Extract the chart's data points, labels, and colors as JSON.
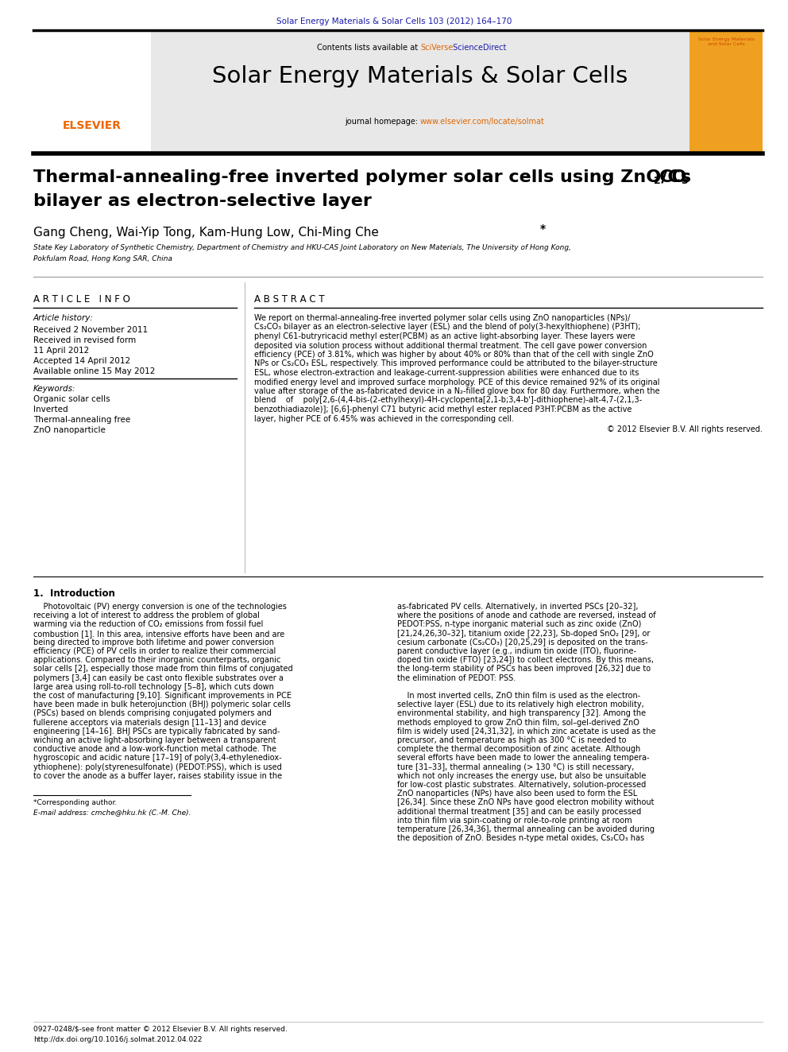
{
  "journal_header": "Solar Energy Materials & Solar Cells 103 (2012) 164–170",
  "contents_line_black": "Contents lists available at ",
  "contents_line_orange": "SciVerse",
  "contents_line_blue": " ScienceDirect",
  "journal_name": "Solar Energy Materials & Solar Cells",
  "homepage_black": "journal homepage: ",
  "homepage_orange": "www.elsevier.com/locate/solmat",
  "title_main": "Thermal-annealing-free inverted polymer solar cells using ZnO/Cs",
  "title_sub2": "2",
  "title_co": "CO",
  "title_sub3": "3",
  "title_line2": "bilayer as electron-selective layer",
  "authors_pre": "Gang Cheng, Wai-Yip Tong, Kam-Hung Low, Chi-Ming Che",
  "authors_star": "*",
  "affil1": "State Key Laboratory of Synthetic Chemistry, Department of Chemistry and HKU-CAS Joint Laboratory on New Materials, The University of Hong Kong,",
  "affil2": "Pokfulam Road, Hong Kong SAR, China",
  "art_info_hdr": "A R T I C L E   I N F O",
  "abstract_hdr": "A B S T R A C T",
  "art_history_lbl": "Article history:",
  "art_dates": [
    "Received 2 November 2011",
    "Received in revised form",
    "11 April 2012",
    "Accepted 14 April 2012",
    "Available online 15 May 2012"
  ],
  "keywords_lbl": "Keywords:",
  "keywords": [
    "Organic solar cells",
    "Inverted",
    "Thermal-annealing free",
    "ZnO nanoparticle"
  ],
  "abstract_lines": [
    "We report on thermal-annealing-free inverted polymer solar cells using ZnO nanoparticles (NPs)/",
    "Cs₂CO₃ bilayer as an electron-selective layer (ESL) and the blend of poly(3-hexylthiophene) (P3HT);",
    "phenyl C61-butryricacid methyl ester(PCBM) as an active light-absorbing layer. These layers were",
    "deposited via solution process without additional thermal treatment. The cell gave power conversion",
    "efficiency (PCE) of 3.81%, which was higher by about 40% or 80% than that of the cell with single ZnO",
    "NPs or Cs₂CO₃ ESL, respectively. This improved performance could be attributed to the bilayer-structure",
    "ESL, whose electron-extraction and leakage-current-suppression abilities were enhanced due to its",
    "modified energy level and improved surface morphology. PCE of this device remained 92% of its original",
    "value after storage of the as-fabricated device in a N₂-filled glove box for 80 day. Furthermore, when the",
    "blend    of    poly[2,6-(4,4-bis-(2-ethylhexyl)-4H-cyclopenta[2,1-b;3,4-b']-dithiophene)-alt-4,7-(2,1,3-",
    "benzothiadiazole)]; [6,6]-phenyl C71 butyric acid methyl ester replaced P3HT:PCBM as the active",
    "layer, higher PCE of 6.45% was achieved in the corresponding cell."
  ],
  "copyright": "© 2012 Elsevier B.V. All rights reserved.",
  "intro_hdr": "1.  Introduction",
  "left_intro": [
    "    Photovoltaic (PV) energy conversion is one of the technologies",
    "receiving a lot of interest to address the problem of global",
    "warming via the reduction of CO₂ emissions from fossil fuel",
    "combustion [1]. In this area, intensive efforts have been and are",
    "being directed to improve both lifetime and power conversion",
    "efficiency (PCE) of PV cells in order to realize their commercial",
    "applications. Compared to their inorganic counterparts, organic",
    "solar cells [2], especially those made from thin films of conjugated",
    "polymers [3,4] can easily be cast onto flexible substrates over a",
    "large area using roll-to-roll technology [5–8], which cuts down",
    "the cost of manufacturing [9,10]. Significant improvements in PCE",
    "have been made in bulk heterojunction (BHJ) polymeric solar cells",
    "(PSCs) based on blends comprising conjugated polymers and",
    "fullerene acceptors via materials design [11–13] and device",
    "engineering [14–16]. BHJ PSCs are typically fabricated by sand-",
    "wiching an active light-absorbing layer between a transparent",
    "conductive anode and a low-work-function metal cathode. The",
    "hygroscopic and acidic nature [17–19] of poly(3,4-ethylenediox-",
    "ythiophene): poly(styrenesulfonate) (PEDOT:PSS), which is used",
    "to cover the anode as a buffer layer, raises stability issue in the"
  ],
  "right_intro": [
    "as-fabricated PV cells. Alternatively, in inverted PSCs [20–32],",
    "where the positions of anode and cathode are reversed, instead of",
    "PEDOT:PSS, n-type inorganic material such as zinc oxide (ZnO)",
    "[21,24,26,30–32], titanium oxide [22,23], Sb-doped SnO₂ [29], or",
    "cesium carbonate (Cs₂CO₃) [20,25,29] is deposited on the trans-",
    "parent conductive layer (e.g., indium tin oxide (ITO), fluorine-",
    "doped tin oxide (FTO) [23,24]) to collect electrons. By this means,",
    "the long-term stability of PSCs has been improved [26,32] due to",
    "the elimination of PEDOT: PSS.",
    "",
    "    In most inverted cells, ZnO thin film is used as the electron-",
    "selective layer (ESL) due to its relatively high electron mobility,",
    "environmental stability, and high transparency [32]. Among the",
    "methods employed to grow ZnO thin film, sol–gel-derived ZnO",
    "film is widely used [24,31,32], in which zinc acetate is used as the",
    "precursor, and temperature as high as 300 °C is needed to",
    "complete the thermal decomposition of zinc acetate. Although",
    "several efforts have been made to lower the annealing tempera-",
    "ture [31–33], thermal annealing (> 130 °C) is still necessary,",
    "which not only increases the energy use, but also be unsuitable",
    "for low-cost plastic substrates. Alternatively, solution-processed",
    "ZnO nanoparticles (NPs) have also been used to form the ESL",
    "[26,34]. Since these ZnO NPs have good electron mobility without",
    "additional thermal treatment [35] and can be easily processed",
    "into thin film via spin-coating or role-to-role printing at room",
    "temperature [26,34,36], thermal annealing can be avoided during",
    "the deposition of ZnO. Besides n-type metal oxides, Cs₂CO₃ has"
  ],
  "footnote_star": "*Corresponding author.",
  "footnote_email": "E-mail address: cmche@hku.hk (C.-M. Che).",
  "footer1": "0927-0248/$-see front matter © 2012 Elsevier B.V. All rights reserved.",
  "footer2": "http://dx.doi.org/10.1016/j.solmat.2012.04.022",
  "blue": "#1a1aaa",
  "orange": "#dd6600",
  "ref_blue": "#2244bb"
}
